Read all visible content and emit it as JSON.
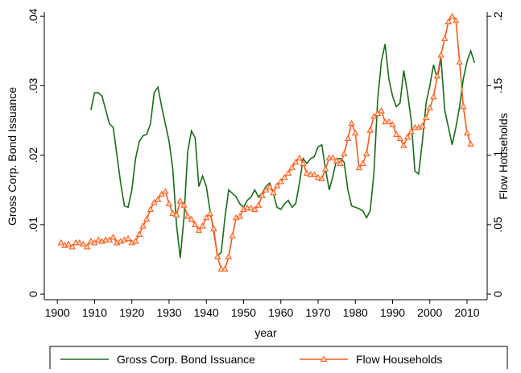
{
  "chart_data": {
    "type": "line",
    "x": [
      1901,
      1902,
      1903,
      1904,
      1905,
      1906,
      1907,
      1908,
      1909,
      1910,
      1911,
      1912,
      1913,
      1914,
      1915,
      1916,
      1917,
      1918,
      1919,
      1920,
      1921,
      1922,
      1923,
      1924,
      1925,
      1926,
      1927,
      1928,
      1929,
      1930,
      1931,
      1932,
      1933,
      1934,
      1935,
      1936,
      1937,
      1938,
      1939,
      1940,
      1941,
      1942,
      1943,
      1944,
      1945,
      1946,
      1947,
      1948,
      1949,
      1950,
      1951,
      1952,
      1953,
      1954,
      1955,
      1956,
      1957,
      1958,
      1959,
      1960,
      1961,
      1962,
      1963,
      1964,
      1965,
      1966,
      1967,
      1968,
      1969,
      1970,
      1971,
      1972,
      1973,
      1974,
      1975,
      1976,
      1977,
      1978,
      1979,
      1980,
      1981,
      1982,
      1983,
      1984,
      1985,
      1986,
      1987,
      1988,
      1989,
      1990,
      1991,
      1992,
      1993,
      1994,
      1995,
      1996,
      1997,
      1998,
      1999,
      2000,
      2001,
      2002,
      2003,
      2004,
      2005,
      2006,
      2007,
      2008,
      2009,
      2010,
      2011,
      2012
    ],
    "series": [
      {
        "name": "Gross Corp. Bond Issuance",
        "color": "#1a6b1a",
        "values": [
          null,
          null,
          null,
          null,
          null,
          null,
          null,
          null,
          0.0265,
          0.029,
          0.029,
          0.0285,
          0.0265,
          0.0245,
          0.024,
          0.02,
          0.016,
          0.0127,
          0.0125,
          0.015,
          0.0195,
          0.022,
          0.0228,
          0.023,
          0.0245,
          0.029,
          0.0298,
          0.027,
          0.0245,
          0.022,
          0.018,
          0.01,
          0.0052,
          0.011,
          0.0205,
          0.0235,
          0.0225,
          0.0155,
          0.017,
          0.0155,
          0.012,
          0.009,
          0.0055,
          0.006,
          0.011,
          0.015,
          0.0145,
          0.014,
          0.013,
          0.0125,
          0.0135,
          0.014,
          0.015,
          0.014,
          0.0145,
          0.0155,
          0.016,
          0.0145,
          0.0125,
          0.0122,
          0.013,
          0.0135,
          0.0125,
          0.013,
          0.016,
          0.0195,
          0.0188,
          0.0195,
          0.0198,
          0.0212,
          0.0215,
          0.018,
          0.015,
          0.017,
          0.0195,
          0.0195,
          0.019,
          0.015,
          0.0127,
          0.0125,
          0.0123,
          0.012,
          0.011,
          0.012,
          0.0175,
          0.028,
          0.0335,
          0.036,
          0.031,
          0.0285,
          0.027,
          0.0275,
          0.0322,
          0.029,
          0.025,
          0.0177,
          0.0173,
          0.022,
          0.0275,
          0.03,
          0.033,
          0.031,
          0.034,
          0.0265,
          0.024,
          0.0215,
          0.024,
          0.027,
          0.031,
          0.0335,
          0.035,
          0.0333
        ]
      },
      {
        "name": "Flow Households",
        "color": "#ff5a1a",
        "axis": "y2",
        "values": [
          0.037,
          0.035,
          0.036,
          0.034,
          0.037,
          0.037,
          0.036,
          0.034,
          0.038,
          0.037,
          0.039,
          0.038,
          0.039,
          0.039,
          0.041,
          0.037,
          0.038,
          0.039,
          0.04,
          0.037,
          0.038,
          0.043,
          0.049,
          0.054,
          0.061,
          0.066,
          0.068,
          0.072,
          0.074,
          0.065,
          0.058,
          0.057,
          0.067,
          0.064,
          0.056,
          0.054,
          0.05,
          0.046,
          0.049,
          0.055,
          0.058,
          0.047,
          0.027,
          0.018,
          0.018,
          0.027,
          0.042,
          0.055,
          0.056,
          0.061,
          0.062,
          0.062,
          0.061,
          0.064,
          0.071,
          0.075,
          0.077,
          0.073,
          0.078,
          0.081,
          0.084,
          0.087,
          0.091,
          0.095,
          0.098,
          0.094,
          0.087,
          0.086,
          0.086,
          0.084,
          0.083,
          0.09,
          0.098,
          0.098,
          0.096,
          0.094,
          0.101,
          0.112,
          0.123,
          0.116,
          0.091,
          0.094,
          0.101,
          0.118,
          0.128,
          0.13,
          0.132,
          0.124,
          0.124,
          0.122,
          0.115,
          0.112,
          0.107,
          0.113,
          0.117,
          0.12,
          0.12,
          0.121,
          0.127,
          0.134,
          0.142,
          0.157,
          0.172,
          0.184,
          0.196,
          0.2,
          0.197,
          0.167,
          0.135,
          0.116,
          0.108,
          null
        ]
      }
    ],
    "xlabel": "year",
    "ylabel": "Gross Corp. Bond Issuance",
    "y2label": "Flow Households",
    "xlim": [
      1896.5,
      2015.4
    ],
    "xticks": [
      1900,
      1910,
      1920,
      1930,
      1940,
      1950,
      1960,
      1970,
      1980,
      1990,
      2000,
      2010
    ],
    "ylim": [
      -0.0008,
      0.0406
    ],
    "yticks": [
      0,
      {
        "value": 0.01,
        "label": ".01"
      },
      {
        "value": 0.02,
        "label": ".02"
      },
      {
        "value": 0.03,
        "label": ".03"
      },
      {
        "value": 0.04,
        "label": ".04"
      }
    ],
    "y2lim": [
      -0.004,
      0.203
    ],
    "y2ticks": [
      0,
      {
        "value": 0.05,
        "label": ".05"
      },
      {
        "value": 0.1,
        "label": ".1"
      },
      {
        "value": 0.15,
        "label": ".15"
      },
      {
        "value": 0.2,
        "label": ".2"
      }
    ],
    "legend": "bottom"
  }
}
